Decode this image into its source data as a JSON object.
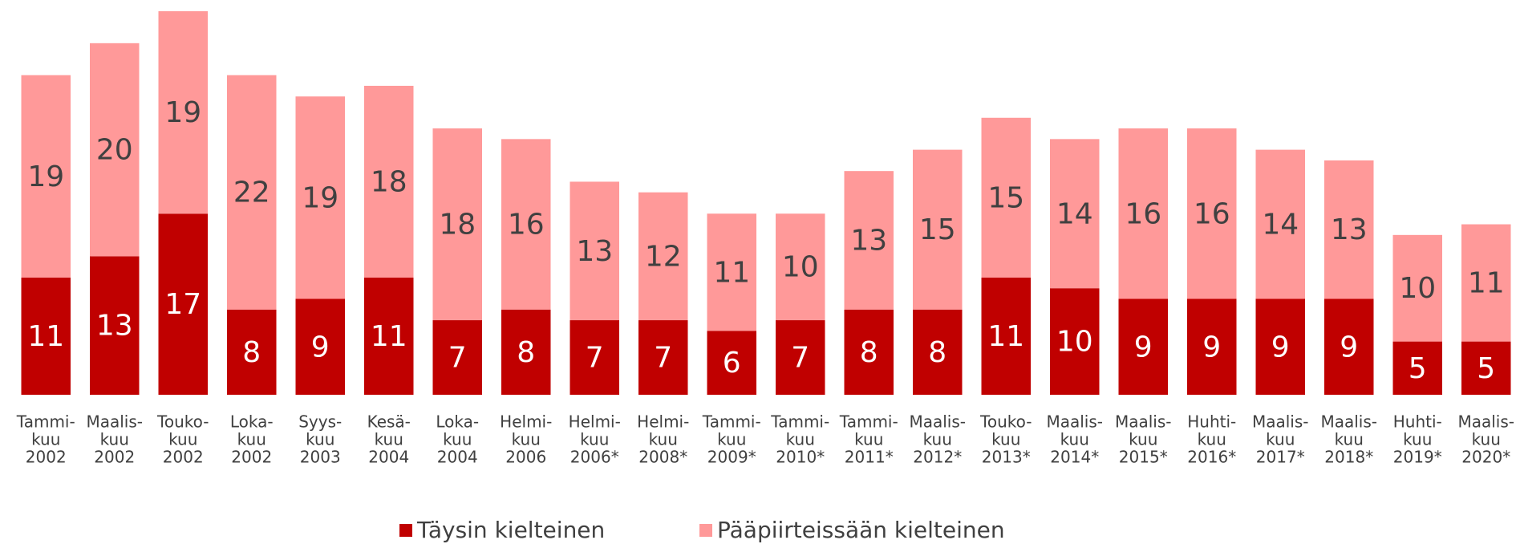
{
  "chart_data": {
    "type": "stacked_bar",
    "categories": [
      [
        "Tammi-",
        "kuu",
        "2002"
      ],
      [
        "Maalis-",
        "kuu",
        "2002"
      ],
      [
        "Touko-",
        "kuu",
        "2002"
      ],
      [
        "Loka-",
        "kuu",
        "2002"
      ],
      [
        "Syys-",
        "kuu",
        "2003"
      ],
      [
        "Kesä-",
        "kuu",
        "2004"
      ],
      [
        "Loka-",
        "kuu",
        "2004"
      ],
      [
        "Helmi-",
        "kuu",
        "2006"
      ],
      [
        "Helmi-",
        "kuu",
        "2006*"
      ],
      [
        "Helmi-",
        "kuu",
        "2008*"
      ],
      [
        "Tammi-",
        "kuu",
        "2009*"
      ],
      [
        "Tammi-",
        "kuu",
        "2010*"
      ],
      [
        "Tammi-",
        "kuu",
        "2011*"
      ],
      [
        "Maalis-",
        "kuu",
        "2012*"
      ],
      [
        "Touko-",
        "kuu",
        "2013*"
      ],
      [
        "Maalis-",
        "kuu",
        "2014*"
      ],
      [
        "Maalis-",
        "kuu",
        "2015*"
      ],
      [
        "Huhti-",
        "kuu",
        "2016*"
      ],
      [
        "Maalis-",
        "kuu",
        "2017*"
      ],
      [
        "Maalis-",
        "kuu",
        "2018*"
      ],
      [
        "Huhti-",
        "kuu",
        "2019*"
      ],
      [
        "Maalis-",
        "kuu",
        "2020*"
      ]
    ],
    "series": [
      {
        "name": "Täysin kielteinen",
        "color": "#c00000",
        "label_color": "#ffffff",
        "values": [
          11,
          13,
          17,
          8,
          9,
          11,
          7,
          8,
          7,
          7,
          6,
          7,
          8,
          8,
          11,
          10,
          9,
          9,
          9,
          9,
          5,
          5
        ]
      },
      {
        "name": "Pääpiirteissään kielteinen",
        "color": "#ff9999",
        "label_color": "#404040",
        "values": [
          19,
          20,
          19,
          22,
          19,
          18,
          18,
          16,
          13,
          12,
          11,
          10,
          13,
          15,
          15,
          14,
          16,
          16,
          14,
          13,
          10,
          11
        ]
      }
    ],
    "ylim": [
      0,
      36
    ],
    "legend": "bottom"
  }
}
